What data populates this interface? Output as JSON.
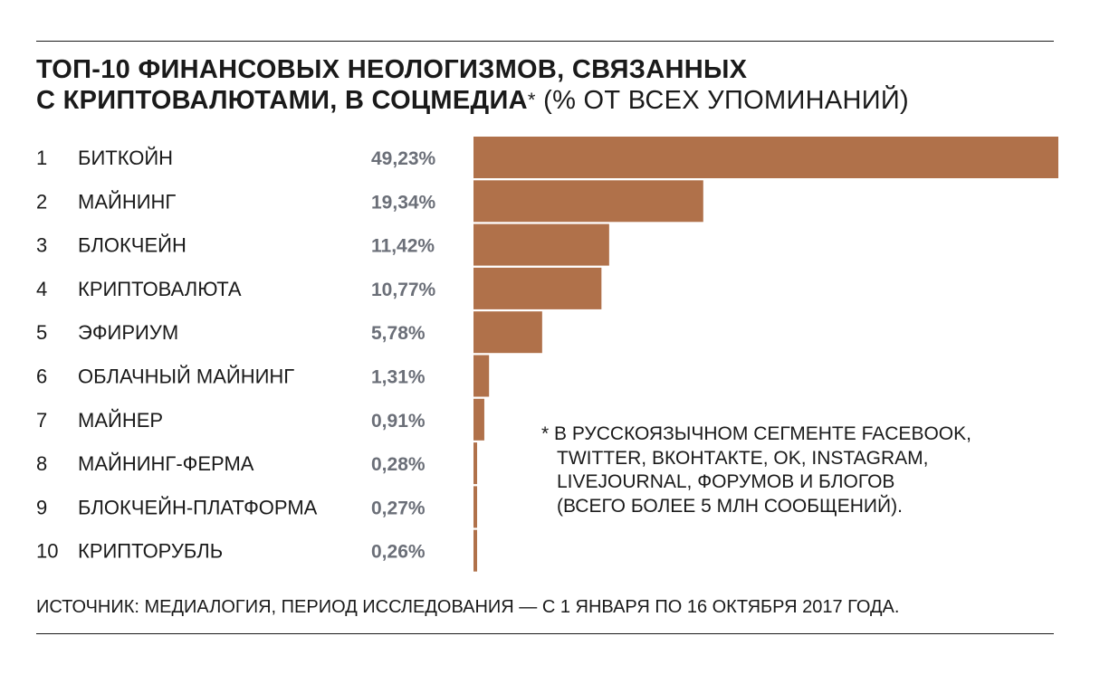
{
  "title": {
    "line1": "ТОП-10 ФИНАНСОВЫХ НЕОЛОГИЗМОВ, СВЯЗАННЫХ",
    "line2_bold": "С КРИПТОВАЛЮТАМИ, В СОЦМЕДИА",
    "star": "*",
    "line2_normal": " (% ОТ ВСЕХ УПОМИНАНИЙ)"
  },
  "chart_data": {
    "type": "bar",
    "orientation": "horizontal",
    "ranks": [
      "1",
      "2",
      "3",
      "4",
      "5",
      "6",
      "7",
      "8",
      "9",
      "10"
    ],
    "categories": [
      "БИТКОЙН",
      "МАЙНИНГ",
      "БЛОКЧЕЙН",
      "КРИПТОВАЛЮТА",
      "ЭФИРИУМ",
      "ОБЛАЧНЫЙ МАЙНИНГ",
      "МАЙНЕР",
      "МАЙНИНГ-ФЕРМА",
      "БЛОКЧЕЙН-ПЛАТФОРМА",
      "КРИПТОРУБЛЬ"
    ],
    "values": [
      49.23,
      19.34,
      11.42,
      10.77,
      5.78,
      1.31,
      0.91,
      0.28,
      0.27,
      0.26
    ],
    "value_labels": [
      "49,23%",
      "19,34%",
      "11,42%",
      "10,77%",
      "5,78%",
      "1,31%",
      "0,91%",
      "0,28%",
      "0,27%",
      "0,26%"
    ],
    "xlim": [
      0,
      49.23
    ],
    "grid": false,
    "bar_color": "#b0714a",
    "value_color": "#6b6f78"
  },
  "note": {
    "lines": [
      "* В РУССКОЯЗЫЧНОМ СЕГМЕНТЕ FACEBOOK,",
      "TWITTER, ВКОНТАКТЕ, OK, INSTAGRAM,",
      "LIVEJOURNAL, ФОРУМОВ И БЛОГОВ",
      "(ВСЕГО БОЛЕЕ 5 МЛН СООБЩЕНИЙ)."
    ]
  },
  "source": "ИСТОЧНИК: МЕДИАЛОГИЯ, ПЕРИОД ИССЛЕДОВАНИЯ — С 1 ЯНВАРЯ ПО 16 ОКТЯБРЯ 2017 ГОДА."
}
